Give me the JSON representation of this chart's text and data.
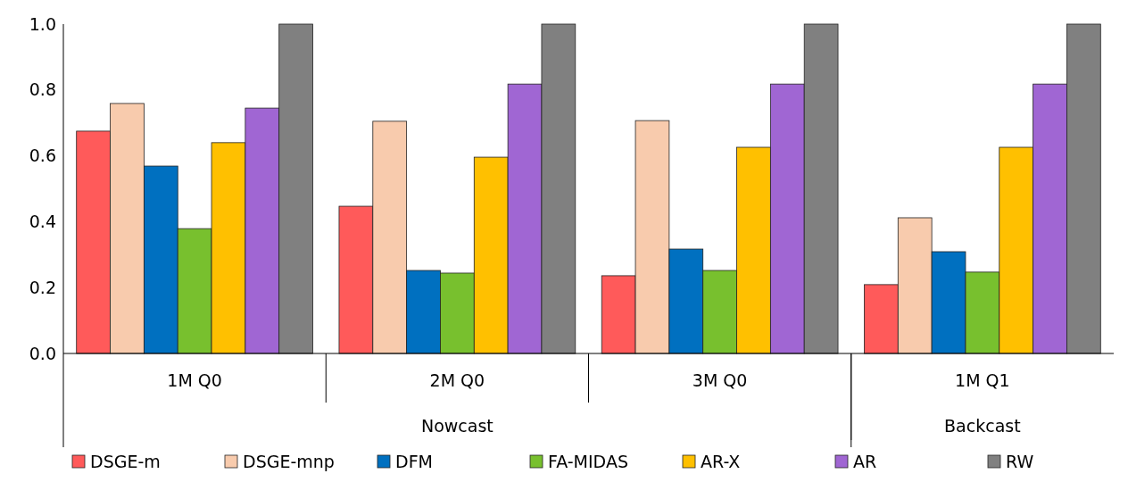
{
  "chart_data": {
    "type": "bar",
    "categories": [
      "1M Q0",
      "2M Q0",
      "3M Q0",
      "1M Q1"
    ],
    "series": [
      {
        "name": "DSGE-m",
        "color": "#ff5a5a",
        "values": [
          0.675,
          0.447,
          0.236,
          0.209
        ]
      },
      {
        "name": "DSGE-mnp",
        "color": "#f8cbad",
        "values": [
          0.759,
          0.705,
          0.707,
          0.412
        ]
      },
      {
        "name": "DFM",
        "color": "#0070c0",
        "values": [
          0.569,
          0.252,
          0.317,
          0.309
        ]
      },
      {
        "name": "FA-MIDAS",
        "color": "#78c02e",
        "values": [
          0.379,
          0.244,
          0.252,
          0.247
        ]
      },
      {
        "name": "AR-X",
        "color": "#ffc000",
        "values": [
          0.64,
          0.596,
          0.626,
          0.626
        ]
      },
      {
        "name": "AR",
        "color": "#a066d3",
        "values": [
          0.745,
          0.818,
          0.818,
          0.818
        ]
      },
      {
        "name": "RW",
        "color": "#808080",
        "values": [
          1,
          1,
          1,
          1
        ]
      }
    ],
    "ylim": [
      0,
      1
    ],
    "yticks": [
      {
        "value": 0,
        "label": "0.0"
      },
      0.2,
      0.4,
      0.6,
      0.8,
      {
        "value": 1,
        "label": "1.0"
      }
    ],
    "annotations": [
      "Nowcast",
      "Backcast"
    ],
    "grid": false,
    "legend": "bottom"
  }
}
